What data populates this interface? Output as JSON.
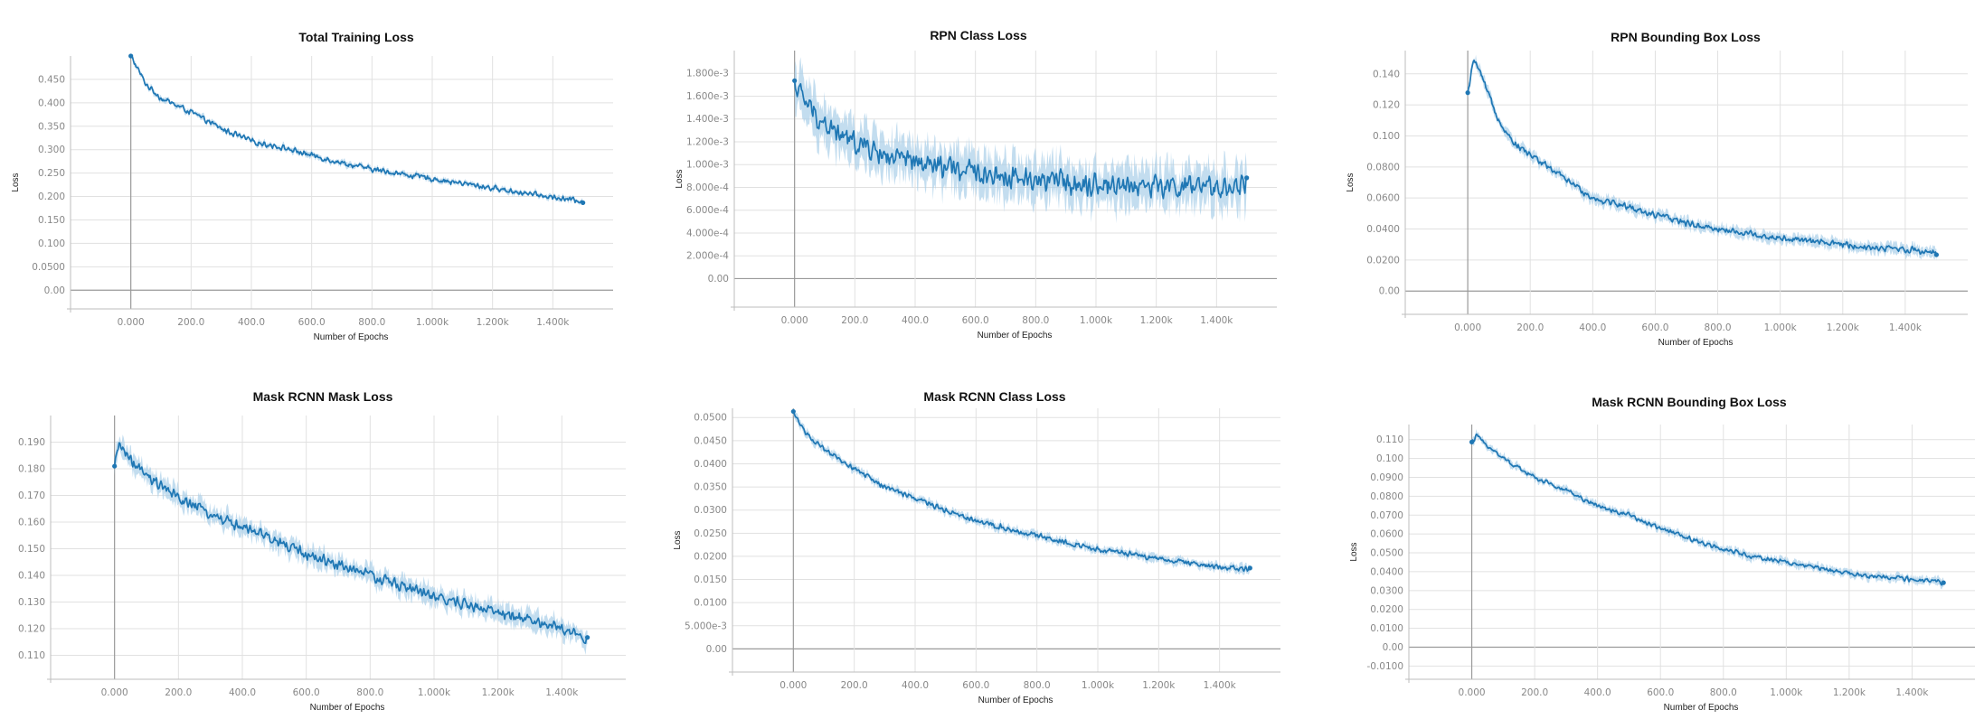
{
  "colors": {
    "series": "#1f77b4",
    "series_light": "#a9cfe8",
    "grid": "#e1e1e1",
    "axis": "#9a9a9a"
  },
  "chart_data": [
    {
      "type": "line",
      "title": "Total Training Loss",
      "xlabel": "Number of Epochs",
      "ylabel": "Loss",
      "xlim": [
        -200,
        1600
      ],
      "ylim": [
        -0.04,
        0.5
      ],
      "x_ticks": [
        0,
        200,
        400,
        600,
        800,
        1000,
        1200,
        1400
      ],
      "x_tick_labels": [
        "0.000",
        "200.0",
        "400.0",
        "600.0",
        "800.0",
        "1.000k",
        "1.200k",
        "1.400k"
      ],
      "y_ticks": [
        0,
        0.05,
        0.1,
        0.15,
        0.2,
        0.25,
        0.3,
        0.35,
        0.4,
        0.45
      ],
      "y_tick_labels": [
        "0.00",
        "0.0500",
        "0.100",
        "0.150",
        "0.200",
        "0.250",
        "0.300",
        "0.350",
        "0.400",
        "0.450"
      ],
      "grid": true,
      "series": [
        {
          "x": [
            0,
            50,
            100,
            150,
            200,
            300,
            400,
            500,
            600,
            700,
            800,
            900,
            1000,
            1100,
            1200,
            1300,
            1400,
            1500
          ],
          "values": [
            0.5,
            0.44,
            0.41,
            0.395,
            0.38,
            0.345,
            0.318,
            0.305,
            0.288,
            0.272,
            0.258,
            0.248,
            0.238,
            0.228,
            0.218,
            0.208,
            0.198,
            0.19
          ],
          "noise": 0.007,
          "band": 0.005
        }
      ]
    },
    {
      "type": "line",
      "title": "RPN Class Loss",
      "xlabel": "Number of Epochs",
      "ylabel": "Loss",
      "xlim": [
        -200,
        1600
      ],
      "ylim": [
        -0.00025,
        0.002
      ],
      "x_ticks": [
        0,
        200,
        400,
        600,
        800,
        1000,
        1200,
        1400
      ],
      "x_tick_labels": [
        "0.000",
        "200.0",
        "400.0",
        "600.0",
        "800.0",
        "1.000k",
        "1.200k",
        "1.400k"
      ],
      "y_ticks": [
        0,
        0.0002,
        0.0004,
        0.0006,
        0.0008,
        0.001,
        0.0012,
        0.0014,
        0.0016,
        0.0018
      ],
      "y_tick_labels": [
        "0.00",
        "2.000e-4",
        "4.000e-4",
        "6.000e-4",
        "8.000e-4",
        "1.000e-3",
        "1.200e-3",
        "1.400e-3",
        "1.600e-3",
        "1.800e-3"
      ],
      "grid": true,
      "series": [
        {
          "x": [
            0,
            50,
            100,
            150,
            200,
            300,
            400,
            500,
            600,
            700,
            800,
            900,
            1000,
            1100,
            1200,
            1300,
            1400,
            1500
          ],
          "values": [
            0.0017,
            0.0015,
            0.00135,
            0.00125,
            0.0012,
            0.00108,
            0.00101,
            0.00097,
            0.00093,
            0.0009,
            0.00087,
            0.00085,
            0.00083,
            0.00082,
            0.00081,
            0.0008,
            0.00079,
            0.00083
          ],
          "noise": 0.00012,
          "band": 0.00016
        }
      ]
    },
    {
      "type": "line",
      "title": "RPN Bounding Box Loss",
      "xlabel": "Number of Epochs",
      "ylabel": "Loss",
      "xlim": [
        -200,
        1600
      ],
      "ylim": [
        -0.015,
        0.155
      ],
      "x_ticks": [
        0,
        200,
        400,
        600,
        800,
        1000,
        1200,
        1400
      ],
      "x_tick_labels": [
        "0.000",
        "200.0",
        "400.0",
        "600.0",
        "800.0",
        "1.000k",
        "1.200k",
        "1.400k"
      ],
      "y_ticks": [
        0,
        0.02,
        0.04,
        0.06,
        0.08,
        0.1,
        0.12,
        0.14
      ],
      "y_tick_labels": [
        "0.00",
        "0.0200",
        "0.0400",
        "0.0600",
        "0.0800",
        "0.100",
        "0.120",
        "0.140"
      ],
      "grid": true,
      "series": [
        {
          "x": [
            0,
            20,
            50,
            100,
            150,
            200,
            300,
            400,
            500,
            600,
            700,
            800,
            900,
            1000,
            1100,
            1200,
            1300,
            1400,
            1500
          ],
          "values": [
            0.127,
            0.15,
            0.135,
            0.11,
            0.095,
            0.088,
            0.074,
            0.06,
            0.055,
            0.049,
            0.044,
            0.04,
            0.037,
            0.034,
            0.032,
            0.03,
            0.028,
            0.027,
            0.025
          ],
          "noise": 0.0025,
          "band": 0.003
        }
      ]
    },
    {
      "type": "line",
      "title": "Mask RCNN Mask Loss",
      "xlabel": "Number of Epochs",
      "ylabel": "Loss",
      "xlim": [
        -200,
        1600
      ],
      "ylim": [
        0.101,
        0.2
      ],
      "x_ticks": [
        0,
        200,
        400,
        600,
        800,
        1000,
        1200,
        1400
      ],
      "x_tick_labels": [
        "0.000",
        "200.0",
        "400.0",
        "600.0",
        "800.0",
        "1.000k",
        "1.200k",
        "1.400k"
      ],
      "y_ticks": [
        0.11,
        0.12,
        0.13,
        0.14,
        0.15,
        0.16,
        0.17,
        0.18,
        0.19
      ],
      "y_tick_labels": [
        "0.110",
        "0.120",
        "0.130",
        "0.140",
        "0.150",
        "0.160",
        "0.170",
        "0.180",
        "0.190"
      ],
      "grid": true,
      "series": [
        {
          "x": [
            0,
            15,
            50,
            100,
            200,
            300,
            400,
            500,
            600,
            700,
            800,
            900,
            1000,
            1100,
            1200,
            1300,
            1400,
            1480
          ],
          "values": [
            0.18,
            0.19,
            0.183,
            0.177,
            0.169,
            0.163,
            0.158,
            0.153,
            0.148,
            0.144,
            0.14,
            0.136,
            0.132,
            0.129,
            0.126,
            0.123,
            0.12,
            0.116
          ],
          "noise": 0.0025,
          "band": 0.003
        }
      ]
    },
    {
      "type": "line",
      "title": "Mask RCNN Class Loss",
      "xlabel": "Number of Epochs",
      "ylabel": "Loss",
      "xlim": [
        -200,
        1600
      ],
      "ylim": [
        -0.005,
        0.052
      ],
      "x_ticks": [
        0,
        200,
        400,
        600,
        800,
        1000,
        1200,
        1400
      ],
      "x_tick_labels": [
        "0.000",
        "200.0",
        "400.0",
        "600.0",
        "800.0",
        "1.000k",
        "1.200k",
        "1.400k"
      ],
      "y_ticks": [
        0,
        0.005,
        0.01,
        0.015,
        0.02,
        0.025,
        0.03,
        0.035,
        0.04,
        0.045,
        0.05
      ],
      "y_tick_labels": [
        "0.00",
        "5.000e-3",
        "0.0100",
        "0.0150",
        "0.0200",
        "0.0250",
        "0.0300",
        "0.0350",
        "0.0400",
        "0.0450",
        "0.0500"
      ],
      "grid": true,
      "series": [
        {
          "x": [
            0,
            50,
            100,
            200,
            300,
            400,
            500,
            600,
            700,
            800,
            900,
            1000,
            1100,
            1200,
            1300,
            1400,
            1500
          ],
          "values": [
            0.051,
            0.046,
            0.043,
            0.039,
            0.035,
            0.0325,
            0.03,
            0.0278,
            0.026,
            0.0245,
            0.023,
            0.0215,
            0.0205,
            0.0195,
            0.0185,
            0.0177,
            0.0172
          ],
          "noise": 0.0007,
          "band": 0.0008
        }
      ]
    },
    {
      "type": "line",
      "title": "Mask RCNN Bounding Box Loss",
      "xlabel": "Number of Epochs",
      "ylabel": "Loss",
      "xlim": [
        -200,
        1600
      ],
      "ylim": [
        -0.017,
        0.118
      ],
      "x_ticks": [
        0,
        200,
        400,
        600,
        800,
        1000,
        1200,
        1400
      ],
      "x_tick_labels": [
        "0.000",
        "200.0",
        "400.0",
        "600.0",
        "800.0",
        "1.000k",
        "1.200k",
        "1.400k"
      ],
      "y_ticks": [
        -0.01,
        0,
        0.01,
        0.02,
        0.03,
        0.04,
        0.05,
        0.06,
        0.07,
        0.08,
        0.09,
        0.1,
        0.11
      ],
      "y_tick_labels": [
        "-0.0100",
        "0.00",
        "0.0100",
        "0.0200",
        "0.0300",
        "0.0400",
        "0.0500",
        "0.0600",
        "0.0700",
        "0.0800",
        "0.0900",
        "0.100",
        "0.110"
      ],
      "grid": true,
      "series": [
        {
          "x": [
            0,
            15,
            50,
            100,
            200,
            300,
            400,
            500,
            600,
            700,
            800,
            900,
            1000,
            1100,
            1200,
            1300,
            1400,
            1500
          ],
          "values": [
            0.108,
            0.112,
            0.107,
            0.1,
            0.09,
            0.083,
            0.075,
            0.07,
            0.063,
            0.057,
            0.052,
            0.048,
            0.045,
            0.042,
            0.039,
            0.037,
            0.036,
            0.034
          ],
          "noise": 0.0015,
          "band": 0.0018
        }
      ]
    }
  ]
}
